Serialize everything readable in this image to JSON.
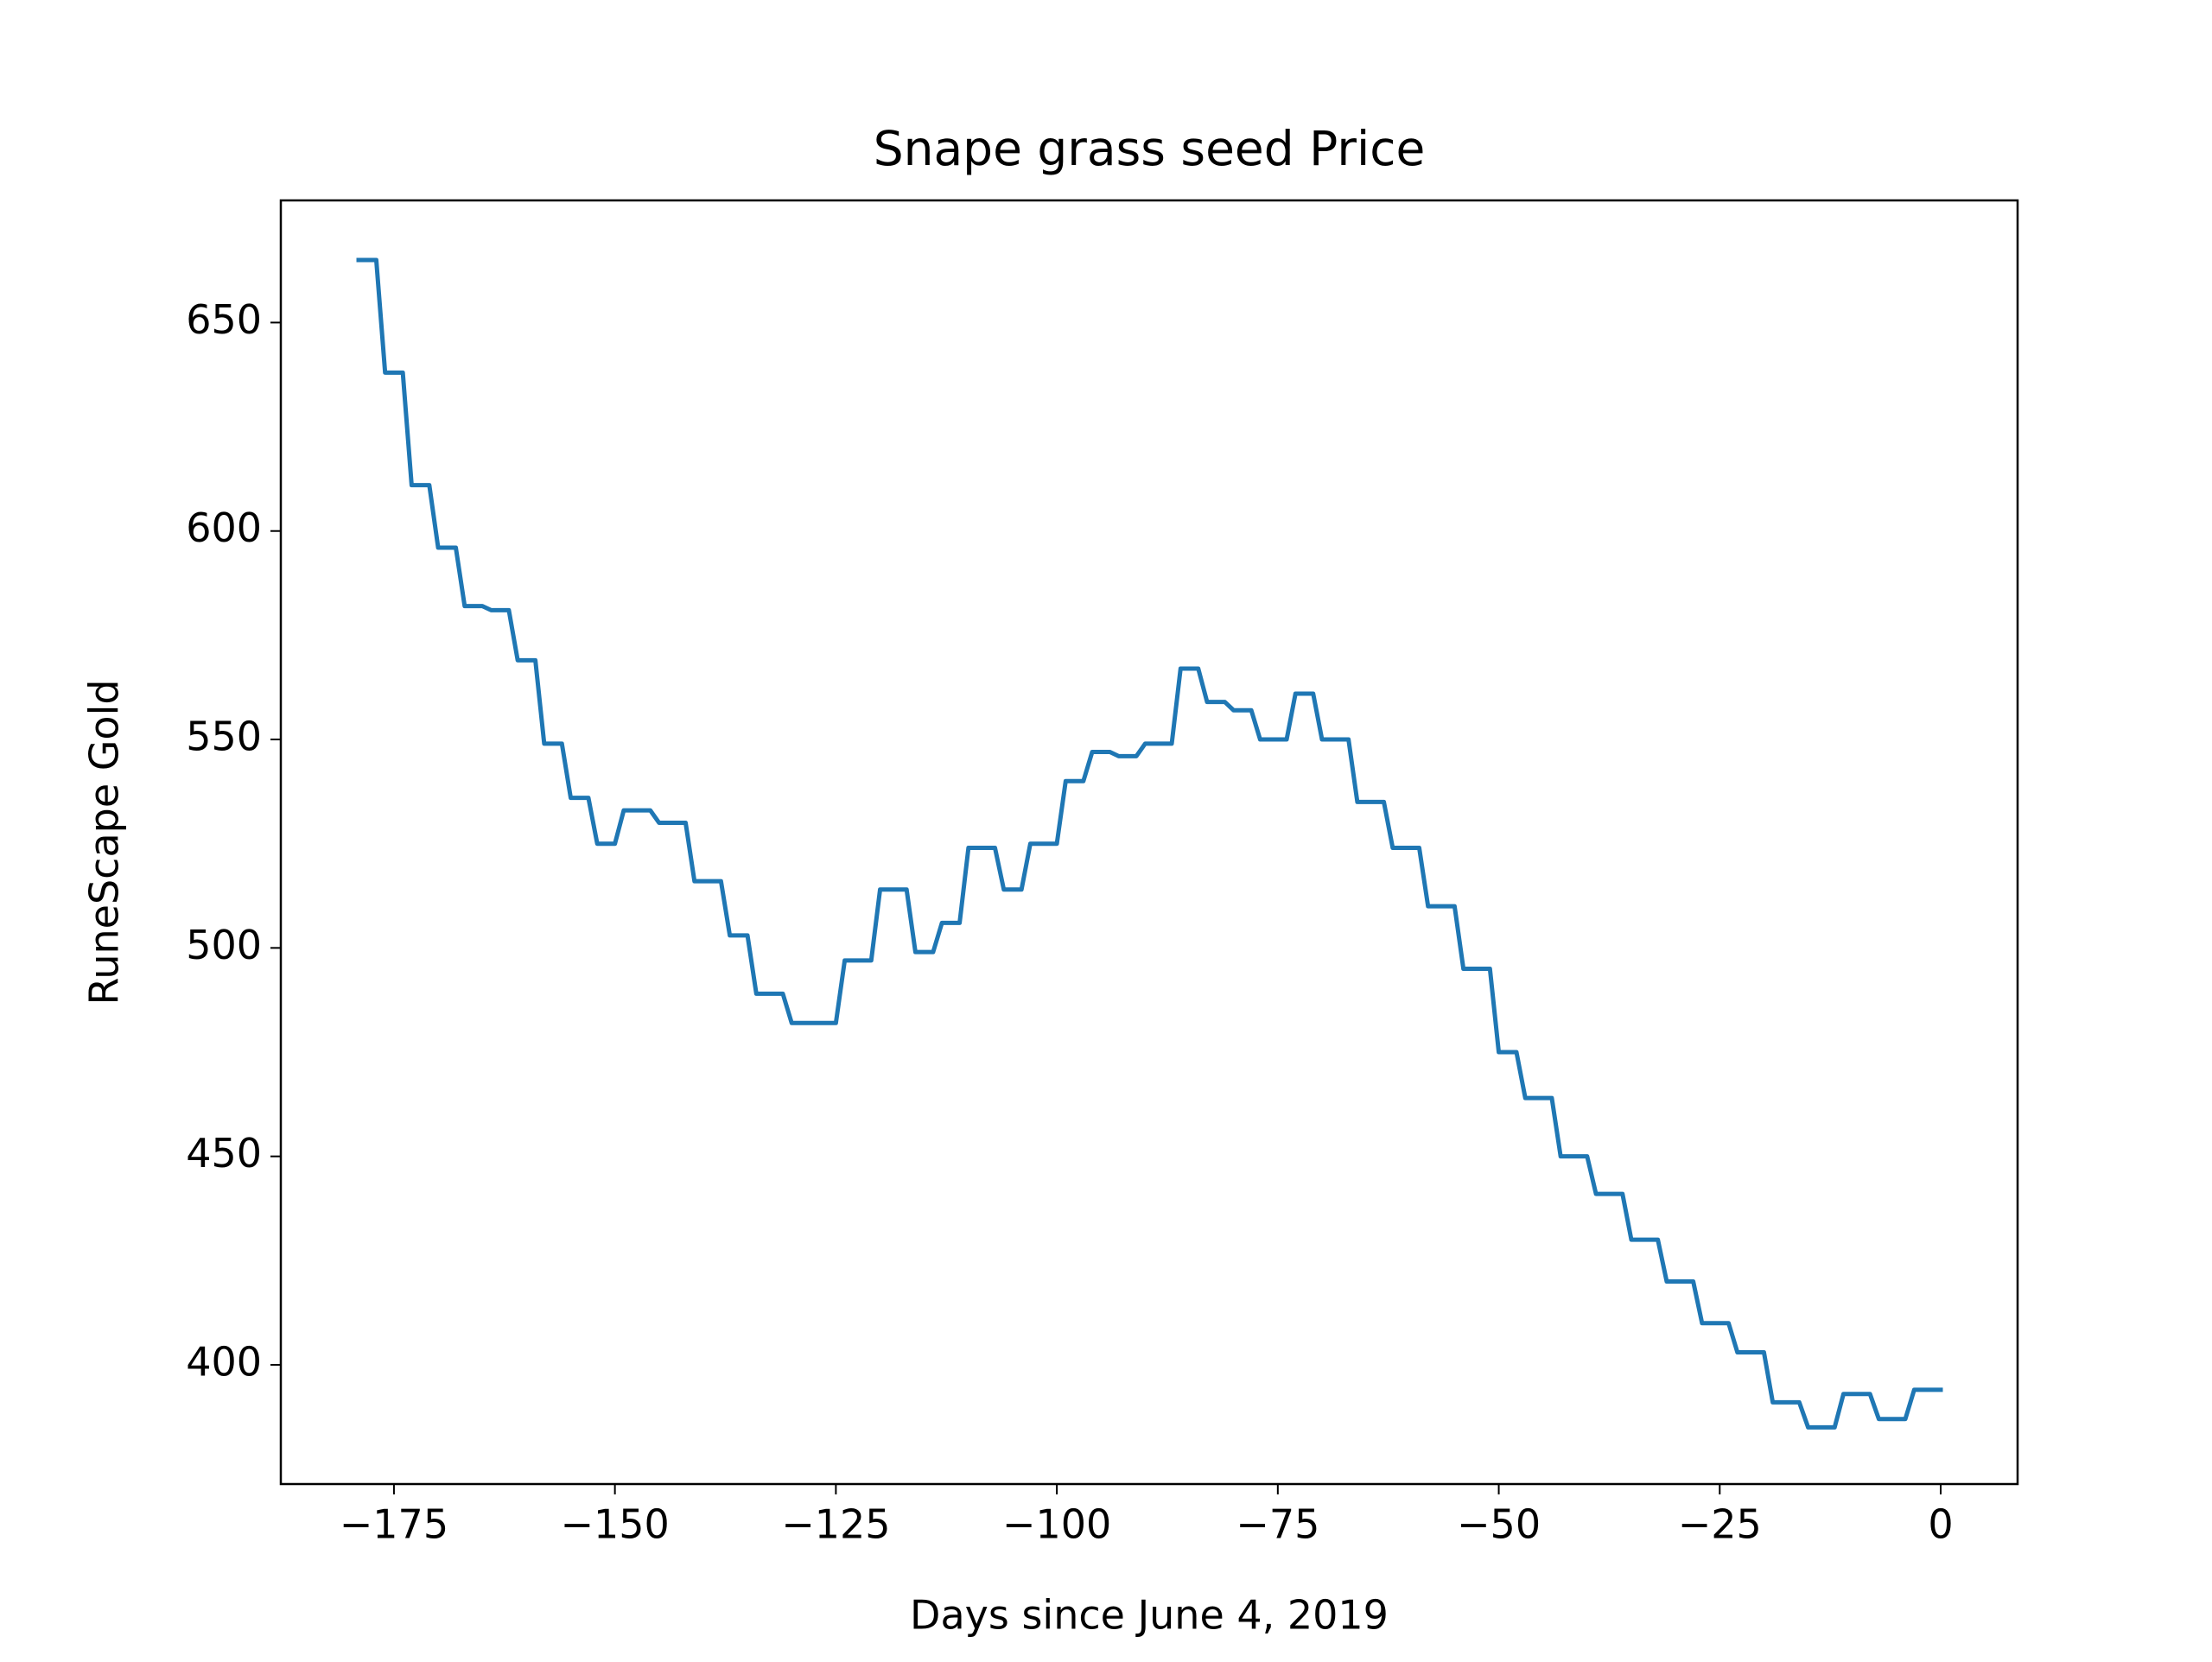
{
  "chart_data": {
    "type": "line",
    "title": "Snape grass seed Price",
    "x_label": "Days since June 4, 2019",
    "y_label": "RuneScape Gold",
    "color": "#1f77b4",
    "x": [
      -179,
      -178,
      -177,
      -176,
      -175,
      -174,
      -173,
      -172,
      -171,
      -170,
      -169,
      -168,
      -167,
      -166,
      -165,
      -164,
      -163,
      -162,
      -161,
      -160,
      -159,
      -158,
      -157,
      -156,
      -155,
      -154,
      -153,
      -152,
      -151,
      -150,
      -149,
      -148,
      -147,
      -146,
      -145,
      -144,
      -143,
      -142,
      -141,
      -140,
      -139,
      -138,
      -137,
      -136,
      -135,
      -134,
      -133,
      -132,
      -131,
      -130,
      -129,
      -128,
      -127,
      -126,
      -125,
      -124,
      -123,
      -122,
      -121,
      -120,
      -119,
      -118,
      -117,
      -116,
      -115,
      -114,
      -113,
      -112,
      -111,
      -110,
      -109,
      -108,
      -107,
      -106,
      -105,
      -104,
      -103,
      -102,
      -101,
      -100,
      -99,
      -98,
      -97,
      -96,
      -95,
      -94,
      -93,
      -92,
      -91,
      -90,
      -89,
      -88,
      -87,
      -86,
      -85,
      -84,
      -83,
      -82,
      -81,
      -80,
      -79,
      -78,
      -77,
      -76,
      -75,
      -74,
      -73,
      -72,
      -71,
      -70,
      -69,
      -68,
      -67,
      -66,
      -65,
      -64,
      -63,
      -62,
      -61,
      -60,
      -59,
      -58,
      -57,
      -56,
      -55,
      -54,
      -53,
      -52,
      -51,
      -50,
      -49,
      -48,
      -47,
      -46,
      -45,
      -44,
      -43,
      -42,
      -41,
      -40,
      -39,
      -38,
      -37,
      -36,
      -35,
      -34,
      -33,
      -32,
      -31,
      -30,
      -29,
      -28,
      -27,
      -26,
      -25,
      -24,
      -23,
      -22,
      -21,
      -20,
      -19,
      -18,
      -17,
      -16,
      -15,
      -14,
      -13,
      -12,
      -11,
      -10,
      -9,
      -8,
      -7,
      -6,
      -5,
      -4,
      -3,
      -2,
      -1,
      0
    ],
    "values": [
      665,
      665,
      665,
      638,
      638,
      638,
      611,
      611,
      611,
      596,
      596,
      596,
      582,
      582,
      582,
      581,
      581,
      581,
      569,
      569,
      569,
      549,
      549,
      549,
      536,
      536,
      536,
      525,
      525,
      525,
      533,
      533,
      533,
      533,
      530,
      530,
      530,
      530,
      516,
      516,
      516,
      516,
      503,
      503,
      503,
      489,
      489,
      489,
      489,
      482,
      482,
      482,
      482,
      482,
      482,
      497,
      497,
      497,
      497,
      514,
      514,
      514,
      514,
      499,
      499,
      499,
      506,
      506,
      506,
      524,
      524,
      524,
      524,
      514,
      514,
      514,
      525,
      525,
      525,
      525,
      540,
      540,
      540,
      547,
      547,
      547,
      546,
      546,
      546,
      549,
      549,
      549,
      549,
      567,
      567,
      567,
      559,
      559,
      559,
      557,
      557,
      557,
      550,
      550,
      550,
      550,
      561,
      561,
      561,
      550,
      550,
      550,
      550,
      535,
      535,
      535,
      535,
      524,
      524,
      524,
      524,
      510,
      510,
      510,
      510,
      495,
      495,
      495,
      495,
      475,
      475,
      475,
      464,
      464,
      464,
      464,
      450,
      450,
      450,
      450,
      441,
      441,
      441,
      441,
      430,
      430,
      430,
      430,
      420,
      420,
      420,
      420,
      410,
      410,
      410,
      410,
      403,
      403,
      403,
      403,
      391,
      391,
      391,
      391,
      385,
      385,
      385,
      385,
      393,
      393,
      393,
      393,
      387,
      387,
      387,
      387,
      394,
      394,
      394,
      394
    ],
    "xlim": [
      -187.8,
      8.7
    ],
    "xticks": [
      {
        "value": -175,
        "label": "−175"
      },
      {
        "value": -150,
        "label": "−150"
      },
      {
        "value": -125,
        "label": "−125"
      },
      {
        "value": -100,
        "label": "−100"
      },
      {
        "value": -75,
        "label": "−75"
      },
      {
        "value": -50,
        "label": "−50"
      },
      {
        "value": -25,
        "label": "−25"
      },
      0
    ],
    "ylim": [
      371.4,
      679.3
    ],
    "yticks": [
      400,
      450,
      500,
      550,
      600,
      650
    ]
  }
}
